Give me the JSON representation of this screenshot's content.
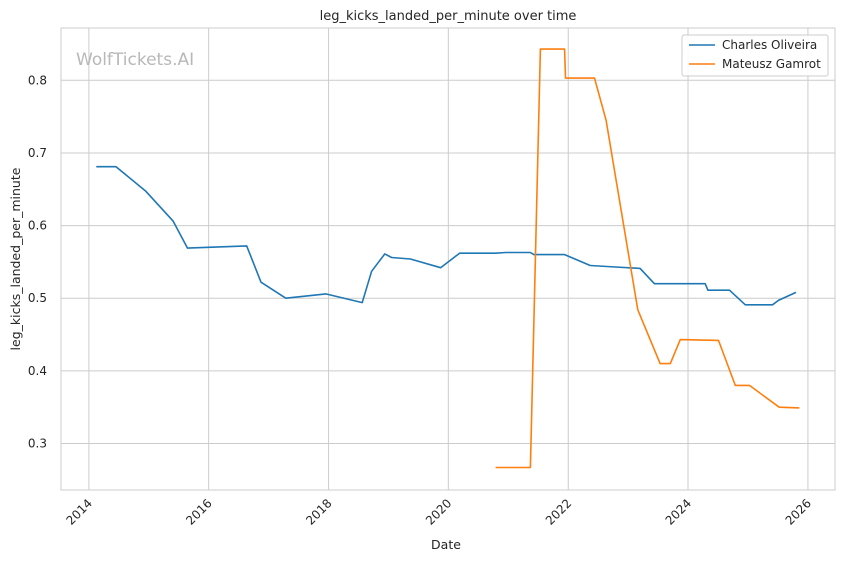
{
  "chart_data": {
    "type": "line",
    "title": "leg_kicks_landed_per_minute over time",
    "xlabel": "Date",
    "ylabel": "leg_kicks_landed_per_minute",
    "watermark": "WolfTickets.AI",
    "x_ticks": [
      "2014",
      "2016",
      "2018",
      "2020",
      "2022",
      "2024",
      "2026"
    ],
    "y_ticks": [
      "0.3",
      "0.4",
      "0.5",
      "0.6",
      "0.7",
      "0.8"
    ],
    "xlim": [
      "2013-07-15",
      "2026-06-15"
    ],
    "ylim": [
      0.236,
      0.872
    ],
    "grid": true,
    "legend_position": "top-right",
    "series": [
      {
        "name": "Charles Oliveira",
        "color": "#1f77b4",
        "points": [
          [
            "2014-02-15",
            0.681
          ],
          [
            "2014-06-15",
            0.681
          ],
          [
            "2014-12-15",
            0.647
          ],
          [
            "2015-05-30",
            0.606
          ],
          [
            "2015-08-25",
            0.569
          ],
          [
            "2016-08-20",
            0.572
          ],
          [
            "2016-11-15",
            0.522
          ],
          [
            "2017-04-15",
            0.5
          ],
          [
            "2017-12-15",
            0.506
          ],
          [
            "2018-07-25",
            0.494
          ],
          [
            "2018-09-20",
            0.537
          ],
          [
            "2018-12-10",
            0.561
          ],
          [
            "2019-01-20",
            0.556
          ],
          [
            "2019-05-15",
            0.554
          ],
          [
            "2019-11-15",
            0.542
          ],
          [
            "2020-03-10",
            0.562
          ],
          [
            "2020-10-15",
            0.562
          ],
          [
            "2020-12-15",
            0.563
          ],
          [
            "2021-05-15",
            0.563
          ],
          [
            "2021-06-05",
            0.56
          ],
          [
            "2021-12-10",
            0.56
          ],
          [
            "2022-05-15",
            0.545
          ],
          [
            "2022-10-15",
            0.543
          ],
          [
            "2023-03-15",
            0.541
          ],
          [
            "2023-06-10",
            0.52
          ],
          [
            "2024-04-15",
            0.52
          ],
          [
            "2024-05-01",
            0.511
          ],
          [
            "2024-09-10",
            0.511
          ],
          [
            "2024-12-15",
            0.491
          ],
          [
            "2025-05-30",
            0.491
          ],
          [
            "2025-07-05",
            0.497
          ],
          [
            "2025-10-20",
            0.508
          ]
        ]
      },
      {
        "name": "Mateusz Gamrot",
        "color": "#ff7f0e",
        "points": [
          [
            "2020-10-15",
            0.267
          ],
          [
            "2021-05-15",
            0.267
          ],
          [
            "2021-07-15",
            0.843
          ],
          [
            "2021-12-10",
            0.843
          ],
          [
            "2021-12-15",
            0.803
          ],
          [
            "2022-06-10",
            0.803
          ],
          [
            "2022-08-20",
            0.745
          ],
          [
            "2023-03-01",
            0.484
          ],
          [
            "2023-07-15",
            0.41
          ],
          [
            "2023-09-15",
            0.41
          ],
          [
            "2023-11-15",
            0.443
          ],
          [
            "2024-07-05",
            0.442
          ],
          [
            "2024-10-15",
            0.38
          ],
          [
            "2025-01-10",
            0.38
          ],
          [
            "2025-07-10",
            0.35
          ],
          [
            "2025-11-10",
            0.349
          ]
        ]
      }
    ]
  }
}
